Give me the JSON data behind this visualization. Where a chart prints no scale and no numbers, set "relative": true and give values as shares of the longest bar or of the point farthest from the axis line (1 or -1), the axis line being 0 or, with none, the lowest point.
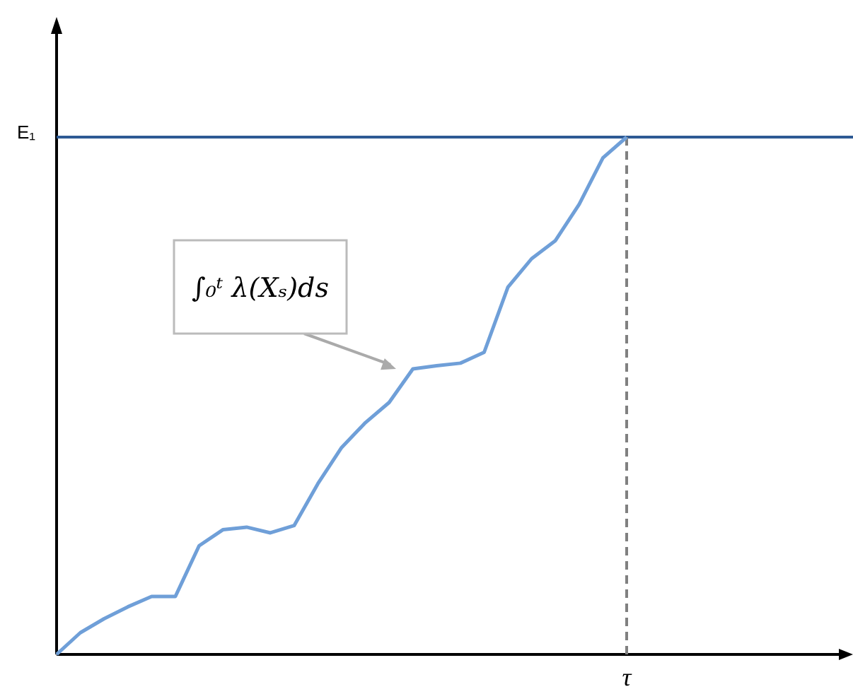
{
  "chart_data": {
    "type": "line",
    "relative": true,
    "categories": [
      null,
      null,
      null,
      null,
      null,
      null,
      null,
      null,
      null,
      null,
      null,
      null,
      null,
      null,
      null,
      null,
      null,
      null,
      null,
      null,
      null,
      null,
      null,
      null,
      null
    ],
    "series": [
      {
        "color": "#6f9fd8",
        "values": [
          0,
          0.042,
          0.069,
          0.092,
          0.112,
          0.112,
          0.21,
          0.241,
          0.246,
          0.235,
          0.249,
          0.33,
          0.4,
          0.448,
          0.487,
          0.552,
          0.558,
          0.563,
          0.584,
          0.71,
          0.765,
          0.8,
          0.87,
          0.96,
          1
        ]
      }
    ],
    "ref_lines": [
      {
        "axis": "y",
        "value": 1,
        "label": "E₁",
        "color": "#2e5a94",
        "line_style": "solid"
      },
      {
        "axis": "x",
        "label": "τ",
        "color": "#808080",
        "line_style": "dashed"
      }
    ],
    "annotations": [
      "∫₀ᵗ λ(Xₛ)ds"
    ],
    "marker": "none",
    "line_style": "solid"
  }
}
